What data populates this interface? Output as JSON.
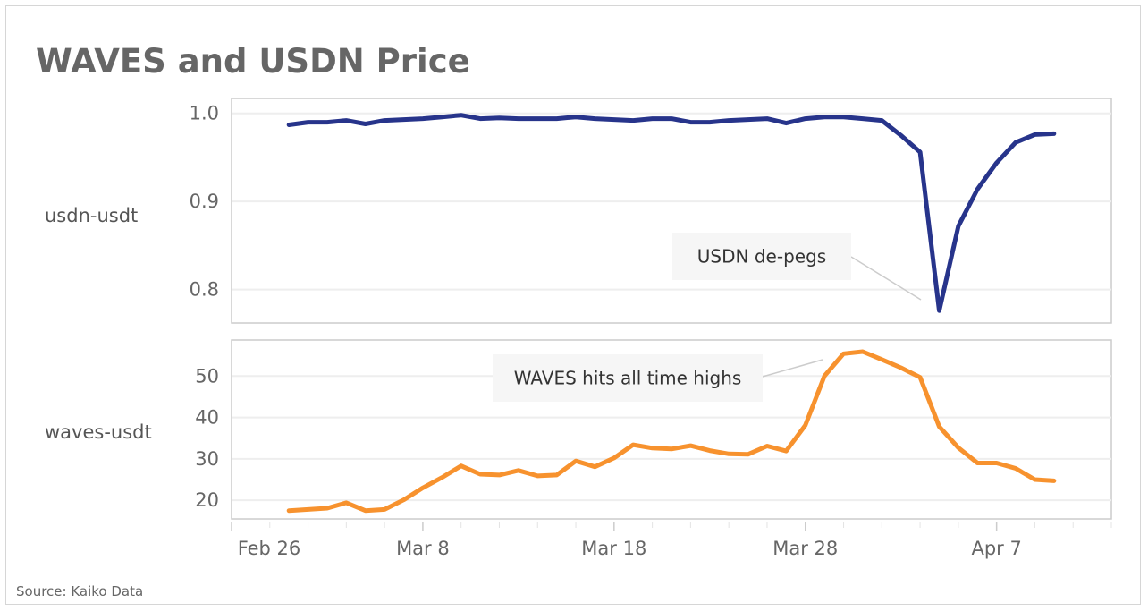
{
  "chart_data": [
    {
      "type": "line",
      "title": "WAVES and USDN Price",
      "ylabel": "usdn-usdt",
      "series": [
        {
          "name": "usdn-usdt",
          "color": "#27348b",
          "values": [
            0.987,
            0.99,
            0.99,
            0.992,
            0.988,
            0.992,
            0.993,
            0.994,
            0.996,
            0.998,
            0.994,
            0.995,
            0.994,
            0.994,
            0.994,
            0.996,
            0.994,
            0.993,
            0.992,
            0.994,
            0.994,
            0.99,
            0.99,
            0.992,
            0.993,
            0.994,
            0.989,
            0.994,
            0.996,
            0.996,
            0.994,
            0.992,
            0.975,
            0.956,
            0.776,
            0.872,
            0.914,
            0.944,
            0.967,
            0.976,
            0.977
          ]
        }
      ],
      "ylim": [
        0.762,
        1.017
      ],
      "yticks": [
        "1.0",
        "0.9",
        "0.8"
      ],
      "ytick_values": [
        1.0,
        0.9,
        0.8
      ],
      "annotation": {
        "text": "USDN de-pegs",
        "day": 37
      },
      "grid": true
    },
    {
      "type": "line",
      "ylabel": "waves-usdt",
      "series": [
        {
          "name": "waves-usdt",
          "color": "#f7922e",
          "values": [
            17.5,
            17.8,
            18.1,
            19.4,
            17.5,
            17.8,
            20.1,
            23.0,
            25.5,
            28.3,
            26.3,
            26.1,
            27.2,
            25.9,
            26.1,
            29.5,
            28.1,
            30.2,
            33.4,
            32.6,
            32.4,
            33.2,
            32.0,
            31.2,
            31.1,
            33.1,
            31.9,
            38.1,
            50.0,
            55.4,
            55.9,
            54.0,
            52.0,
            49.7,
            37.8,
            32.7,
            29.0,
            29.0,
            27.7,
            25.0,
            24.7
          ]
        }
      ],
      "ylim": [
        15.5,
        58.7
      ],
      "yticks": [
        "50",
        "40",
        "30",
        "20"
      ],
      "ytick_values": [
        50,
        40,
        30,
        20
      ],
      "annotation": {
        "text": "WAVES hits all time highs",
        "day": 31
      },
      "grid": true
    }
  ],
  "x_axis": {
    "first_point_date": "Mar 1",
    "first_point_day_offset": 3,
    "step_days": 1,
    "xlim_days": [
      0,
      46
    ],
    "ticks": [
      {
        "label": "Feb 26",
        "day": 0
      },
      {
        "label": "Mar 8",
        "day": 10
      },
      {
        "label": "Mar 18",
        "day": 20
      },
      {
        "label": "Mar 28",
        "day": 30
      },
      {
        "label": "Apr 7",
        "day": 40
      }
    ]
  },
  "source": "Source: Kaiko Data"
}
